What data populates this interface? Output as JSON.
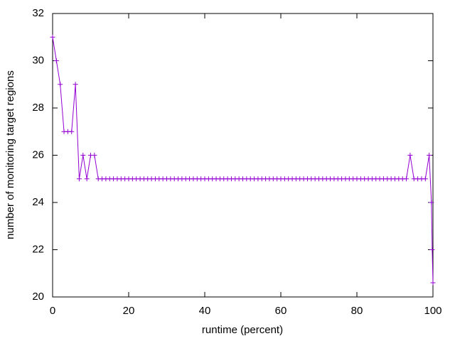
{
  "chart_data": {
    "type": "line",
    "x_label": "runtime (percent)",
    "y_label": "number of monitoring target regions",
    "x": [
      0,
      1,
      2,
      3,
      4,
      5,
      6,
      7,
      8,
      9,
      10,
      11,
      12,
      13,
      14,
      15,
      16,
      17,
      18,
      19,
      20,
      21,
      22,
      23,
      24,
      25,
      26,
      27,
      28,
      29,
      30,
      31,
      32,
      33,
      34,
      35,
      36,
      37,
      38,
      39,
      40,
      41,
      42,
      43,
      44,
      45,
      46,
      47,
      48,
      49,
      50,
      51,
      52,
      53,
      54,
      55,
      56,
      57,
      58,
      59,
      60,
      61,
      62,
      63,
      64,
      65,
      66,
      67,
      68,
      69,
      70,
      71,
      72,
      73,
      74,
      75,
      76,
      77,
      78,
      79,
      80,
      81,
      82,
      83,
      84,
      85,
      86,
      87,
      88,
      89,
      90,
      91,
      92,
      93,
      94,
      95,
      96,
      97,
      98,
      99,
      99.6,
      99.8,
      100
    ],
    "series": [
      {
        "color": "#9400d3",
        "values": [
          31,
          30,
          29,
          27,
          27,
          27,
          29,
          25,
          26,
          25,
          26,
          26,
          25,
          25,
          25,
          25,
          25,
          25,
          25,
          25,
          25,
          25,
          25,
          25,
          25,
          25,
          25,
          25,
          25,
          25,
          25,
          25,
          25,
          25,
          25,
          25,
          25,
          25,
          25,
          25,
          25,
          25,
          25,
          25,
          25,
          25,
          25,
          25,
          25,
          25,
          25,
          25,
          25,
          25,
          25,
          25,
          25,
          25,
          25,
          25,
          25,
          25,
          25,
          25,
          25,
          25,
          25,
          25,
          25,
          25,
          25,
          25,
          25,
          25,
          25,
          25,
          25,
          25,
          25,
          25,
          25,
          25,
          25,
          25,
          25,
          25,
          25,
          25,
          25,
          25,
          25,
          25,
          25,
          25,
          26,
          25,
          25,
          25,
          25,
          26,
          24,
          22,
          20.6
        ]
      }
    ],
    "xlim": [
      0,
      100
    ],
    "xticks": [
      0,
      20,
      40,
      60,
      80,
      100
    ],
    "ylim": [
      20,
      32
    ],
    "yticks": [
      20,
      22,
      24,
      26,
      28,
      30,
      32
    ],
    "grid": false
  }
}
